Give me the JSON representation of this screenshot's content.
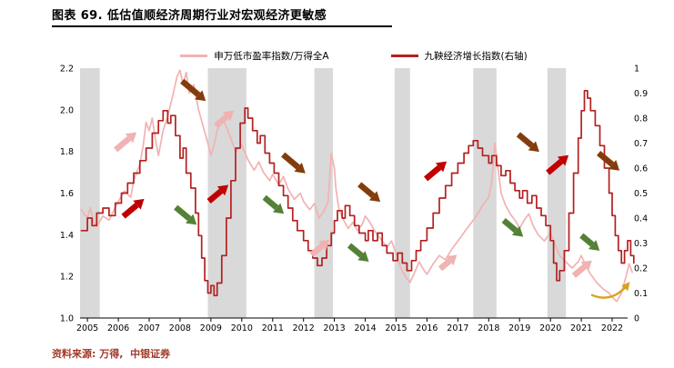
{
  "header": {
    "title": "图表 69. 低估值顺经济周期行业对宏观经济更敏感"
  },
  "legend": [
    {
      "label": "申万低市盈率指数/万得全A",
      "color": "#f2b2b2"
    },
    {
      "label": "九鞅经济增长指数(右轴)",
      "color": "#b42020"
    }
  ],
  "footer": {
    "source": "资料来源: 万得,  中银证券",
    "color": "#a03a28"
  },
  "chart_data": {
    "type": "line",
    "title": "图表 69. 低估值顺经济周期行业对宏观经济更敏感",
    "x_axis": {
      "min": 2004.76,
      "max": 2022.5,
      "ticks": [
        2005,
        2006,
        2007,
        2008,
        2009,
        2010,
        2011,
        2012,
        2013,
        2014,
        2015,
        2016,
        2017,
        2018,
        2019,
        2020,
        2021,
        2022
      ]
    },
    "left_axis": {
      "min": 1.0,
      "max": 2.2,
      "ticks": [
        1.0,
        1.2,
        1.4,
        1.6,
        1.8,
        2.0,
        2.2
      ],
      "tick_labels": [
        "1.0",
        "1.2",
        "1.4",
        "1.6",
        "1.8",
        "2.0",
        "2.2"
      ]
    },
    "right_axis": {
      "min": 0,
      "max": 1,
      "ticks": [
        0,
        0.1,
        0.2,
        0.3,
        0.4,
        0.5,
        0.6,
        0.7,
        0.8,
        0.9,
        1
      ],
      "tick_labels": [
        "0",
        "0.1",
        "0.2",
        "0.3",
        "0.4",
        "0.5",
        "0.6",
        "0.7",
        "0.8",
        "0.9",
        "1"
      ]
    },
    "shaded_bands": [
      [
        2004.76,
        2005.4
      ],
      [
        2008.9,
        2010.15
      ],
      [
        2012.35,
        2012.95
      ],
      [
        2014.95,
        2015.45
      ],
      [
        2017.5,
        2018.25
      ],
      [
        2019.9,
        2020.5
      ]
    ],
    "colors": {
      "band": "#d9d9d9",
      "pink": "#f2b2b2",
      "red": "#b42020",
      "brown": "#843c0c",
      "green": "#538135",
      "yellow": "#d8a21d"
    },
    "series": [
      {
        "id": "low-pe-index-ratio",
        "name": "申万低市盈率指数/万得全A",
        "axis": "left",
        "color": "#f2b2b2",
        "step": false,
        "x": [
          2004.8,
          2005.0,
          2005.1,
          2005.2,
          2005.3,
          2005.5,
          2005.7,
          2005.9,
          2006.0,
          2006.2,
          2006.4,
          2006.5,
          2006.7,
          2006.8,
          2006.9,
          2007.0,
          2007.1,
          2007.2,
          2007.3,
          2007.45,
          2007.6,
          2007.75,
          2007.9,
          2008.0,
          2008.1,
          2008.2,
          2008.3,
          2008.45,
          2008.6,
          2008.75,
          2008.9,
          2009.0,
          2009.1,
          2009.2,
          2009.35,
          2009.5,
          2009.65,
          2009.8,
          2010.0,
          2010.2,
          2010.4,
          2010.55,
          2010.7,
          2010.9,
          2011.0,
          2011.2,
          2011.35,
          2011.5,
          2011.7,
          2011.9,
          2012.0,
          2012.2,
          2012.35,
          2012.5,
          2012.65,
          2012.8,
          2012.9,
          2013.0,
          2013.05,
          2013.15,
          2013.3,
          2013.45,
          2013.6,
          2013.75,
          2013.9,
          2014.0,
          2014.15,
          2014.3,
          2014.5,
          2014.7,
          2014.85,
          2015.0,
          2015.15,
          2015.3,
          2015.45,
          2015.6,
          2015.75,
          2015.9,
          2016.0,
          2016.2,
          2016.4,
          2016.6,
          2016.8,
          2017.0,
          2017.2,
          2017.4,
          2017.6,
          2017.8,
          2018.0,
          2018.1,
          2018.2,
          2018.3,
          2018.4,
          2018.55,
          2018.7,
          2018.9,
          2019.0,
          2019.15,
          2019.3,
          2019.45,
          2019.6,
          2019.8,
          2020.0,
          2020.15,
          2020.3,
          2020.5,
          2020.7,
          2020.9,
          2021.0,
          2021.15,
          2021.3,
          2021.5,
          2021.7,
          2021.9,
          2022.0,
          2022.15,
          2022.3,
          2022.45,
          2022.55,
          2022.65
        ],
        "y": [
          1.52,
          1.48,
          1.53,
          1.46,
          1.44,
          1.49,
          1.47,
          1.53,
          1.56,
          1.61,
          1.58,
          1.66,
          1.74,
          1.82,
          1.94,
          1.9,
          1.96,
          1.86,
          1.78,
          1.9,
          1.97,
          2.06,
          2.16,
          2.19,
          2.12,
          2.18,
          2.08,
          2.12,
          2.0,
          1.92,
          1.84,
          1.78,
          1.83,
          1.9,
          1.96,
          1.92,
          1.86,
          1.8,
          1.83,
          1.76,
          1.71,
          1.75,
          1.7,
          1.66,
          1.69,
          1.64,
          1.68,
          1.62,
          1.57,
          1.6,
          1.56,
          1.52,
          1.55,
          1.48,
          1.51,
          1.56,
          1.79,
          1.72,
          1.62,
          1.52,
          1.47,
          1.43,
          1.46,
          1.42,
          1.45,
          1.49,
          1.46,
          1.42,
          1.38,
          1.34,
          1.37,
          1.31,
          1.24,
          1.2,
          1.17,
          1.22,
          1.27,
          1.23,
          1.21,
          1.26,
          1.3,
          1.28,
          1.33,
          1.37,
          1.41,
          1.45,
          1.49,
          1.54,
          1.58,
          1.66,
          1.84,
          1.72,
          1.6,
          1.54,
          1.5,
          1.46,
          1.43,
          1.47,
          1.5,
          1.44,
          1.4,
          1.37,
          1.41,
          1.35,
          1.3,
          1.27,
          1.24,
          1.27,
          1.3,
          1.25,
          1.21,
          1.17,
          1.14,
          1.12,
          1.1,
          1.08,
          1.12,
          1.2,
          1.26,
          1.22
        ]
      },
      {
        "id": "economic-growth-index",
        "name": "九鞅经济增长指数(右轴)",
        "axis": "right",
        "color": "#b42020",
        "step": true,
        "x": [
          2004.8,
          2005.0,
          2005.15,
          2005.3,
          2005.5,
          2005.7,
          2005.9,
          2006.1,
          2006.3,
          2006.5,
          2006.7,
          2006.9,
          2007.1,
          2007.3,
          2007.45,
          2007.6,
          2007.7,
          2007.85,
          2008.0,
          2008.1,
          2008.2,
          2008.35,
          2008.5,
          2008.6,
          2008.7,
          2008.8,
          2008.9,
          2009.0,
          2009.1,
          2009.2,
          2009.35,
          2009.5,
          2009.65,
          2009.8,
          2009.95,
          2010.1,
          2010.2,
          2010.35,
          2010.5,
          2010.6,
          2010.75,
          2010.9,
          2011.05,
          2011.2,
          2011.35,
          2011.5,
          2011.65,
          2011.8,
          2012.0,
          2012.15,
          2012.3,
          2012.45,
          2012.6,
          2012.75,
          2012.9,
          2013.0,
          2013.1,
          2013.25,
          2013.35,
          2013.5,
          2013.65,
          2013.8,
          2014.0,
          2014.1,
          2014.25,
          2014.4,
          2014.55,
          2014.7,
          2014.9,
          2015.05,
          2015.2,
          2015.35,
          2015.5,
          2015.65,
          2015.8,
          2016.0,
          2016.2,
          2016.4,
          2016.6,
          2016.8,
          2017.0,
          2017.2,
          2017.35,
          2017.5,
          2017.65,
          2017.8,
          2018.0,
          2018.1,
          2018.25,
          2018.4,
          2018.55,
          2018.7,
          2018.85,
          2019.0,
          2019.1,
          2019.25,
          2019.4,
          2019.55,
          2019.7,
          2019.85,
          2020.0,
          2020.1,
          2020.2,
          2020.3,
          2020.45,
          2020.6,
          2020.75,
          2020.9,
          2021.0,
          2021.1,
          2021.2,
          2021.3,
          2021.45,
          2021.6,
          2021.75,
          2021.9,
          2022.0,
          2022.1,
          2022.2,
          2022.3,
          2022.4,
          2022.5,
          2022.6,
          2022.7
        ],
        "y": [
          0.35,
          0.4,
          0.37,
          0.42,
          0.44,
          0.41,
          0.46,
          0.5,
          0.54,
          0.58,
          0.63,
          0.68,
          0.74,
          0.79,
          0.83,
          0.78,
          0.81,
          0.73,
          0.64,
          0.68,
          0.58,
          0.52,
          0.42,
          0.33,
          0.24,
          0.15,
          0.1,
          0.13,
          0.09,
          0.14,
          0.25,
          0.4,
          0.55,
          0.68,
          0.78,
          0.84,
          0.8,
          0.75,
          0.7,
          0.73,
          0.66,
          0.62,
          0.58,
          0.53,
          0.49,
          0.44,
          0.39,
          0.35,
          0.31,
          0.27,
          0.24,
          0.21,
          0.24,
          0.29,
          0.34,
          0.39,
          0.43,
          0.4,
          0.45,
          0.41,
          0.37,
          0.34,
          0.31,
          0.35,
          0.31,
          0.34,
          0.29,
          0.26,
          0.23,
          0.26,
          0.22,
          0.19,
          0.23,
          0.27,
          0.31,
          0.36,
          0.42,
          0.48,
          0.53,
          0.58,
          0.62,
          0.66,
          0.69,
          0.71,
          0.68,
          0.65,
          0.62,
          0.65,
          0.61,
          0.57,
          0.59,
          0.54,
          0.51,
          0.48,
          0.51,
          0.46,
          0.49,
          0.44,
          0.41,
          0.37,
          0.31,
          0.22,
          0.15,
          0.19,
          0.27,
          0.42,
          0.58,
          0.72,
          0.83,
          0.91,
          0.88,
          0.83,
          0.77,
          0.69,
          0.6,
          0.5,
          0.41,
          0.33,
          0.27,
          0.22,
          0.27,
          0.31,
          0.25,
          0.22
        ]
      }
    ],
    "annotations": {
      "arrows": [
        {
          "x": 2006.25,
          "y": 1.85,
          "dir": "up",
          "color": "#f0b2b2",
          "len": 30
        },
        {
          "x": 2006.5,
          "y": 1.53,
          "dir": "up",
          "color": "#c00000",
          "len": 30
        },
        {
          "x": 2008.45,
          "y": 2.09,
          "dir": "down",
          "color": "#843c0c",
          "len": 34
        },
        {
          "x": 2008.2,
          "y": 1.49,
          "dir": "down",
          "color": "#538135",
          "len": 30
        },
        {
          "x": 2009.25,
          "y": 1.6,
          "dir": "up",
          "color": "#c00000",
          "len": 28
        },
        {
          "x": 2009.45,
          "y": 1.96,
          "dir": "up",
          "color": "#f0b2b2",
          "len": 26
        },
        {
          "x": 2011.05,
          "y": 1.54,
          "dir": "down",
          "color": "#538135",
          "len": 28
        },
        {
          "x": 2011.7,
          "y": 1.74,
          "dir": "down",
          "color": "#843c0c",
          "len": 32
        },
        {
          "x": 2012.55,
          "y": 1.34,
          "dir": "up",
          "color": "#f0b2b2",
          "len": 26
        },
        {
          "x": 2013.8,
          "y": 1.31,
          "dir": "down",
          "color": "#538135",
          "len": 28
        },
        {
          "x": 2014.15,
          "y": 1.6,
          "dir": "down",
          "color": "#843c0c",
          "len": 30
        },
        {
          "x": 2016.3,
          "y": 1.71,
          "dir": "up",
          "color": "#c00000",
          "len": 30
        },
        {
          "x": 2016.7,
          "y": 1.27,
          "dir": "up",
          "color": "#f0b2b2",
          "len": 24
        },
        {
          "x": 2018.8,
          "y": 1.43,
          "dir": "down",
          "color": "#538135",
          "len": 28
        },
        {
          "x": 2019.3,
          "y": 1.84,
          "dir": "down",
          "color": "#843c0c",
          "len": 30
        },
        {
          "x": 2020.25,
          "y": 1.74,
          "dir": "up",
          "color": "#c00000",
          "len": 30
        },
        {
          "x": 2021.3,
          "y": 1.36,
          "dir": "down",
          "color": "#538135",
          "len": 26
        },
        {
          "x": 2021.05,
          "y": 1.24,
          "dir": "up",
          "color": "#f0b2b2",
          "len": 26
        },
        {
          "x": 2021.9,
          "y": 1.75,
          "dir": "down",
          "color": "#843c0c",
          "len": 30
        }
      ],
      "curved_arrow": {
        "start": [
          2021.35,
          1.11
        ],
        "ctrl": [
          2022.0,
          1.07
        ],
        "end": [
          2022.5,
          1.16
        ],
        "color": "#d8a21d"
      }
    }
  }
}
